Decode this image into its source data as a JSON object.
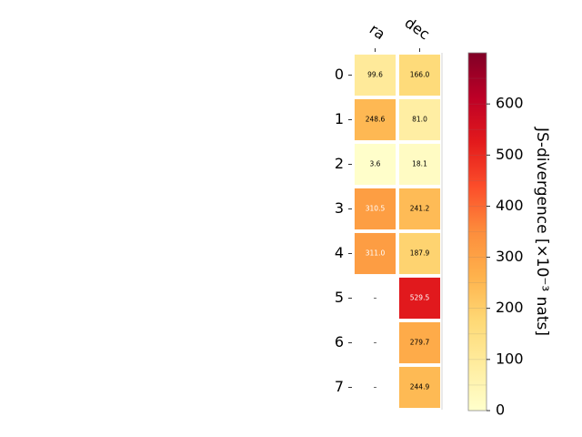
{
  "chart_data": {
    "type": "heatmap",
    "columns": [
      "ra",
      "dec"
    ],
    "rows": [
      "0",
      "1",
      "2",
      "3",
      "4",
      "5",
      "6",
      "7"
    ],
    "values": [
      [
        99.6,
        166.0
      ],
      [
        248.6,
        81.0
      ],
      [
        3.6,
        18.1
      ],
      [
        310.5,
        241.2
      ],
      [
        311.0,
        187.9
      ],
      [
        null,
        529.5
      ],
      [
        null,
        279.7
      ],
      [
        null,
        244.9
      ]
    ],
    "cell_labels": [
      [
        "99.6",
        "166.0"
      ],
      [
        "248.6",
        "81.0"
      ],
      [
        "3.6",
        "18.1"
      ],
      [
        "310.5",
        "241.2"
      ],
      [
        "311.0",
        "187.9"
      ],
      [
        "–",
        "529.5"
      ],
      [
        "–",
        "279.7"
      ],
      [
        "–",
        "244.9"
      ]
    ],
    "colorbar": {
      "label": "JS-divergence [×10⁻³ nats]",
      "range": [
        0,
        700
      ],
      "ticks": [
        "0",
        "100",
        "200",
        "300",
        "400",
        "500",
        "600"
      ],
      "colormap": "YlOrRd"
    },
    "colors": {
      "light_text": "#ffffff",
      "dark_text": "#000000",
      "cell_border": "#ffffff"
    }
  }
}
